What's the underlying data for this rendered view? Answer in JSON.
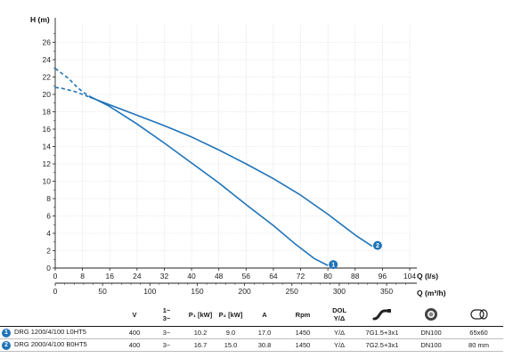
{
  "chart_data": {
    "type": "line",
    "ylabel": "H (m)",
    "xlabel": "Q (l/s)",
    "xlabel2": "Q (m³/h)",
    "xlim": [
      0,
      104
    ],
    "ylim": [
      0,
      28
    ],
    "x_ticks": [
      "0",
      "8",
      "16",
      "24",
      "32",
      "40",
      "48",
      "56",
      "64",
      "72",
      "80",
      "88",
      "96",
      "104"
    ],
    "y_ticks": [
      "0",
      "2",
      "4",
      "6",
      "8",
      "10",
      "12",
      "14",
      "16",
      "18",
      "20",
      "22",
      "24",
      "26"
    ],
    "x2_ticks": [
      "0",
      "50",
      "100",
      "150",
      "200",
      "250",
      "300",
      "350"
    ],
    "series": [
      {
        "label": "1",
        "color": "#1e73b8",
        "dashed_points": [
          [
            0,
            23.0
          ],
          [
            2,
            22.4
          ],
          [
            4,
            21.8
          ],
          [
            6,
            21.0
          ],
          [
            8,
            20.3
          ],
          [
            10,
            19.8
          ]
        ],
        "points": [
          [
            10,
            19.8
          ],
          [
            16,
            18.6
          ],
          [
            24,
            16.6
          ],
          [
            32,
            14.4
          ],
          [
            40,
            12.1
          ],
          [
            48,
            9.8
          ],
          [
            56,
            7.3
          ],
          [
            64,
            4.9
          ],
          [
            70,
            2.9
          ],
          [
            76,
            1.1
          ],
          [
            80,
            0.3
          ]
        ]
      },
      {
        "label": "2",
        "color": "#1e73b8",
        "dashed_points": [
          [
            0,
            20.8
          ],
          [
            2,
            20.7
          ],
          [
            4,
            20.5
          ],
          [
            6,
            20.3
          ],
          [
            8,
            20.0
          ],
          [
            10,
            19.7
          ]
        ],
        "points": [
          [
            10,
            19.7
          ],
          [
            16,
            18.8
          ],
          [
            24,
            17.6
          ],
          [
            32,
            16.4
          ],
          [
            40,
            15.1
          ],
          [
            48,
            13.6
          ],
          [
            56,
            12.0
          ],
          [
            64,
            10.3
          ],
          [
            72,
            8.4
          ],
          [
            80,
            6.2
          ],
          [
            88,
            3.8
          ],
          [
            93,
            2.5
          ]
        ]
      }
    ]
  },
  "table": {
    "headers": {
      "voltage": "V",
      "phase_top": "1~",
      "phase_bottom": "3~",
      "p1": "P₁ [kW]",
      "p2": "P₂ [kW]",
      "amps": "A",
      "rpm": "Rpm",
      "dol_top": "DOL",
      "dol_bottom": "Y/Δ"
    },
    "rows": [
      {
        "badge": "1",
        "model": "DRG 1200/4/100 L0HT5",
        "voltage": "400",
        "phase": "3~",
        "p1": "10.2",
        "p2": "9.0",
        "amps": "17.0",
        "rpm": "1450",
        "dol": "Y/Δ",
        "cable": "7G1.5+3x1",
        "outlet": "DN100",
        "passage": "65x60"
      },
      {
        "badge": "2",
        "model": "DRG 2000/4/100 B0HT5",
        "voltage": "400",
        "phase": "3~",
        "p1": "16.7",
        "p2": "15.0",
        "amps": "30.8",
        "rpm": "1450",
        "dol": "Y/Δ",
        "cable": "7G2.5+3x1",
        "outlet": "DN100",
        "passage": "80 mm"
      }
    ]
  }
}
